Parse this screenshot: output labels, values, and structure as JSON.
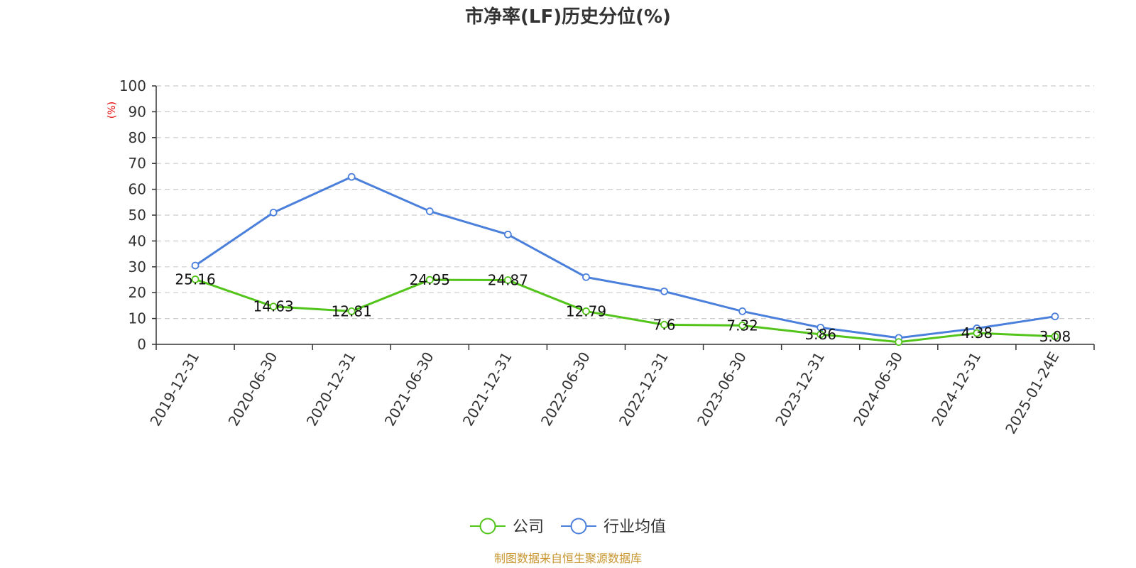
{
  "chart_data": {
    "type": "line",
    "title": "市净率(LF)历史分位(%)",
    "y_unit": "(%)",
    "categories": [
      "2019-12-31",
      "2020-06-30",
      "2020-12-31",
      "2021-06-30",
      "2021-12-31",
      "2022-06-30",
      "2022-12-31",
      "2023-06-30",
      "2023-12-31",
      "2024-06-30",
      "2024-12-31",
      "2025-01-24E"
    ],
    "ylim": [
      0,
      100
    ],
    "yticks": [
      0,
      10,
      20,
      30,
      40,
      50,
      60,
      70,
      80,
      90,
      100
    ],
    "grid": true,
    "legend_position": "bottom",
    "series": [
      {
        "name": "公司",
        "color": "#52c41a",
        "values": [
          25.16,
          14.63,
          12.81,
          24.95,
          24.87,
          12.79,
          7.6,
          7.32,
          3.86,
          0.9,
          4.38,
          3.08
        ],
        "labels": [
          "25.16",
          "14.63",
          "12.81",
          "24.95",
          "24.87",
          "12.79",
          "7.6",
          "7.32",
          "3.86",
          "",
          "4.38",
          "3.08"
        ]
      },
      {
        "name": "行业均值",
        "color": "#4a7fdb",
        "values": [
          30.5,
          51.0,
          64.8,
          51.5,
          42.5,
          26.0,
          20.5,
          12.8,
          6.5,
          2.5,
          6.2,
          10.8
        ]
      }
    ]
  },
  "source_text": "制图数据来自恒生聚源数据库",
  "colors": {
    "unit": "#e60000",
    "source": "#c8962e",
    "grid": "#cccccc",
    "axis": "#333333"
  }
}
